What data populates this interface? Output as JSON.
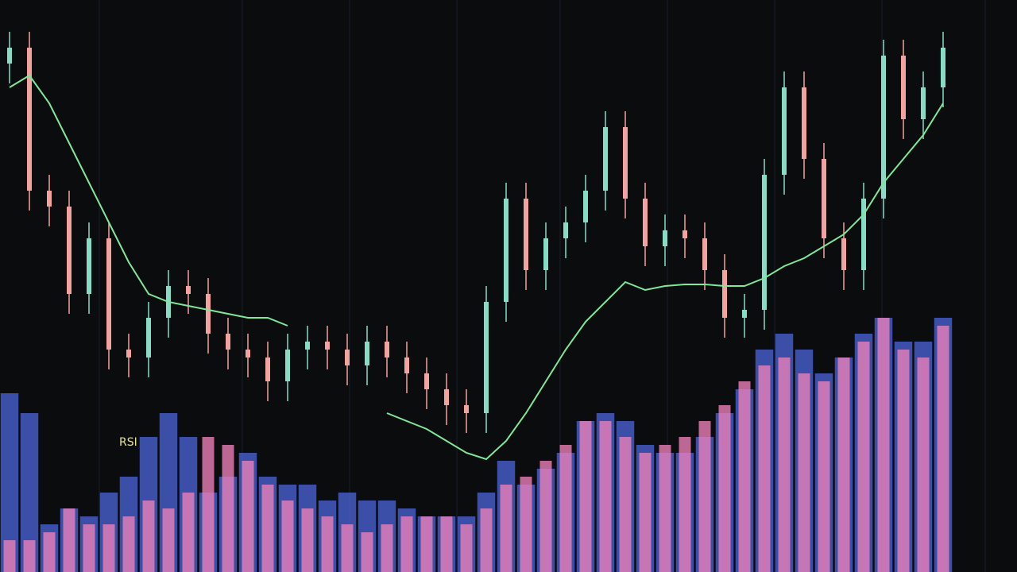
{
  "chart_data": {
    "type": "candlestick",
    "annotations": [
      "RSI"
    ],
    "categories": [
      null,
      null,
      null,
      null,
      null,
      null,
      null,
      null,
      null,
      null,
      null,
      null,
      null,
      null,
      null,
      null,
      null,
      null,
      null,
      null,
      null,
      null,
      null,
      null,
      null,
      null,
      null,
      null,
      null,
      null,
      null,
      null,
      null,
      null,
      null,
      null,
      null,
      null,
      null,
      null,
      null,
      null,
      null,
      null,
      null,
      null,
      null,
      null
    ],
    "ylim": [
      0,
      720
    ],
    "up_color": "#86dcc4",
    "down_color": "#f2a3a0",
    "open": [
      640,
      660,
      480,
      460,
      350,
      420,
      280,
      270,
      320,
      360,
      350,
      300,
      280,
      270,
      240,
      280,
      290,
      280,
      260,
      290,
      270,
      250,
      230,
      210,
      200,
      340,
      470,
      380,
      420,
      440,
      480,
      560,
      470,
      410,
      430,
      420,
      380,
      320,
      330,
      500,
      610,
      520,
      420,
      380,
      470,
      650,
      570,
      610
    ],
    "high": [
      680,
      680,
      500,
      480,
      440,
      440,
      300,
      340,
      380,
      380,
      370,
      320,
      300,
      290,
      300,
      310,
      310,
      300,
      310,
      310,
      290,
      270,
      250,
      230,
      360,
      490,
      490,
      440,
      460,
      500,
      580,
      580,
      490,
      450,
      450,
      440,
      400,
      350,
      520,
      630,
      630,
      540,
      440,
      490,
      670,
      670,
      630,
      680
    ],
    "low": [
      615,
      455,
      435,
      325,
      325,
      255,
      245,
      245,
      295,
      325,
      275,
      255,
      245,
      215,
      215,
      255,
      255,
      235,
      235,
      245,
      225,
      205,
      185,
      175,
      175,
      315,
      355,
      355,
      395,
      415,
      455,
      445,
      385,
      385,
      395,
      355,
      295,
      295,
      305,
      475,
      495,
      395,
      355,
      355,
      445,
      545,
      545,
      585
    ],
    "close": [
      660,
      480,
      460,
      350,
      420,
      280,
      270,
      320,
      360,
      350,
      300,
      280,
      270,
      240,
      280,
      290,
      280,
      260,
      290,
      270,
      250,
      230,
      210,
      200,
      340,
      470,
      380,
      420,
      440,
      480,
      560,
      470,
      410,
      430,
      420,
      380,
      320,
      330,
      500,
      610,
      520,
      420,
      380,
      470,
      650,
      570,
      610,
      660
    ],
    "series": [
      {
        "color": "#7ee89a",
        "values": [
          610,
          625,
          590,
          540,
          490,
          440,
          390,
          350,
          340,
          335,
          330,
          325,
          320,
          320,
          310,
          null,
          null,
          null,
          null,
          200,
          190,
          180,
          165,
          150,
          142,
          165,
          200,
          240,
          280,
          315,
          340,
          365,
          355,
          360,
          362,
          362,
          360,
          360,
          370,
          385,
          395,
          410,
          425,
          450,
          490,
          520,
          550,
          590
        ]
      }
    ],
    "oscillator": [
      {
        "color": "#4c66dc",
        "values": [
          225,
          200,
          60,
          80,
          70,
          100,
          120,
          170,
          200,
          170,
          100,
          120,
          150,
          120,
          110,
          110,
          90,
          100,
          90,
          90,
          80,
          70,
          70,
          70,
          100,
          140,
          110,
          130,
          150,
          190,
          200,
          190,
          160,
          150,
          150,
          170,
          200,
          230,
          280,
          300,
          280,
          250,
          270,
          300,
          320,
          290,
          290,
          320
        ]
      },
      {
        "color": "#ea7fb6",
        "values": [
          40,
          40,
          50,
          80,
          60,
          60,
          70,
          90,
          80,
          100,
          170,
          160,
          140,
          110,
          90,
          80,
          70,
          60,
          50,
          60,
          70,
          70,
          70,
          60,
          80,
          110,
          120,
          140,
          160,
          190,
          190,
          170,
          150,
          160,
          170,
          190,
          210,
          240,
          260,
          270,
          250,
          240,
          270,
          290,
          320,
          280,
          270,
          310
        ]
      }
    ]
  }
}
